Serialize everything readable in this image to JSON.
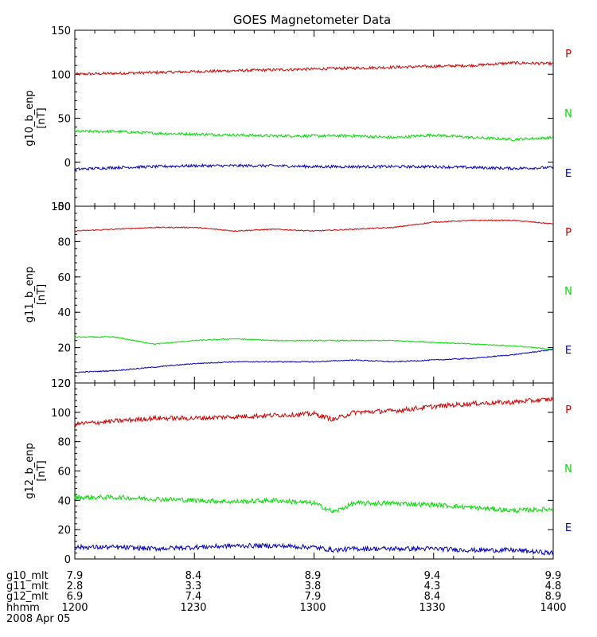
{
  "title": "GOES Magnetometer Data",
  "colors": {
    "P": "#d00000",
    "N": "#00dd00",
    "E": "#0000c0",
    "axis": "#000000"
  },
  "chart_data": [
    {
      "type": "line",
      "ylabel_top": "g10_b_enp",
      "ylabel_unit": "[nT]",
      "ylim": [
        -50,
        150
      ],
      "yticks": [
        -50,
        0,
        50,
        100,
        150
      ],
      "xlim": [
        0,
        120
      ],
      "series": [
        {
          "name": "P",
          "x": [
            0,
            10,
            20,
            30,
            40,
            50,
            60,
            70,
            80,
            90,
            100,
            110,
            120
          ],
          "y": [
            100,
            101,
            102,
            103,
            104,
            105,
            106,
            107,
            108,
            109,
            110,
            113,
            112
          ]
        },
        {
          "name": "N",
          "x": [
            0,
            10,
            20,
            30,
            40,
            50,
            60,
            70,
            80,
            90,
            100,
            110,
            120
          ],
          "y": [
            35,
            35,
            33,
            32,
            31,
            30,
            30,
            30,
            28,
            31,
            28,
            26,
            28
          ]
        },
        {
          "name": "E",
          "x": [
            0,
            10,
            20,
            30,
            40,
            50,
            60,
            70,
            80,
            90,
            100,
            110,
            120
          ],
          "y": [
            -8,
            -6,
            -5,
            -4,
            -4,
            -4,
            -5,
            -5,
            -5,
            -5,
            -6,
            -7,
            -6
          ]
        }
      ],
      "legend": [
        "P",
        "N",
        "E"
      ]
    },
    {
      "type": "line",
      "ylabel_top": "g11_b_enp",
      "ylabel_unit": "[nT]",
      "ylim": [
        0,
        100
      ],
      "yticks": [
        0,
        20,
        40,
        60,
        80,
        100
      ],
      "xlim": [
        0,
        120
      ],
      "series": [
        {
          "name": "P",
          "x": [
            0,
            10,
            20,
            30,
            40,
            50,
            60,
            70,
            80,
            90,
            100,
            110,
            120
          ],
          "y": [
            86,
            87,
            88,
            88,
            86,
            87,
            86,
            87,
            88,
            91,
            92,
            92,
            90
          ]
        },
        {
          "name": "N",
          "x": [
            0,
            10,
            20,
            30,
            40,
            50,
            60,
            70,
            80,
            90,
            100,
            110,
            120
          ],
          "y": [
            26,
            26,
            22,
            24,
            25,
            24,
            24,
            24,
            24,
            23,
            22,
            21,
            19
          ]
        },
        {
          "name": "E",
          "x": [
            0,
            10,
            20,
            30,
            40,
            50,
            60,
            70,
            80,
            90,
            100,
            110,
            120
          ],
          "y": [
            6,
            7,
            9,
            11,
            12,
            12,
            12,
            13,
            12,
            13,
            14,
            16,
            19
          ]
        }
      ],
      "legend": [
        "P",
        "N",
        "E"
      ]
    },
    {
      "type": "line",
      "ylabel_top": "g12_b_enp",
      "ylabel_unit": "[nT]",
      "ylim": [
        0,
        120
      ],
      "yticks": [
        0,
        20,
        40,
        60,
        80,
        100,
        120
      ],
      "xlim": [
        0,
        120
      ],
      "series": [
        {
          "name": "P",
          "x": [
            0,
            10,
            20,
            30,
            40,
            50,
            60,
            65,
            70,
            80,
            90,
            100,
            110,
            120
          ],
          "y": [
            92,
            94,
            96,
            96,
            97,
            98,
            99,
            95,
            100,
            101,
            104,
            106,
            107,
            109
          ]
        },
        {
          "name": "N",
          "x": [
            0,
            10,
            20,
            30,
            40,
            50,
            60,
            65,
            70,
            80,
            90,
            100,
            110,
            120
          ],
          "y": [
            42,
            42,
            41,
            40,
            39,
            40,
            38,
            32,
            38,
            38,
            37,
            35,
            33,
            34
          ]
        },
        {
          "name": "E",
          "x": [
            0,
            10,
            20,
            30,
            40,
            50,
            60,
            65,
            70,
            80,
            90,
            100,
            110,
            120
          ],
          "y": [
            8,
            8,
            7,
            8,
            9,
            9,
            8,
            6,
            7,
            7,
            7,
            6,
            6,
            4
          ]
        }
      ],
      "legend": [
        "P",
        "N",
        "E"
      ]
    }
  ],
  "footer": {
    "rows": [
      {
        "label": "g10_mlt",
        "values": [
          "7.9",
          "8.4",
          "8.9",
          "9.4",
          "9.9"
        ]
      },
      {
        "label": "g11_mlt",
        "values": [
          "2.8",
          "3.3",
          "3.8",
          "4.3",
          "4.8"
        ]
      },
      {
        "label": "g12_mlt",
        "values": [
          "6.9",
          "7.4",
          "7.9",
          "8.4",
          "8.9"
        ]
      },
      {
        "label": "hhmm",
        "values": [
          "1200",
          "1230",
          "1300",
          "1330",
          "1400"
        ]
      }
    ],
    "date": "2008 Apr 05"
  }
}
